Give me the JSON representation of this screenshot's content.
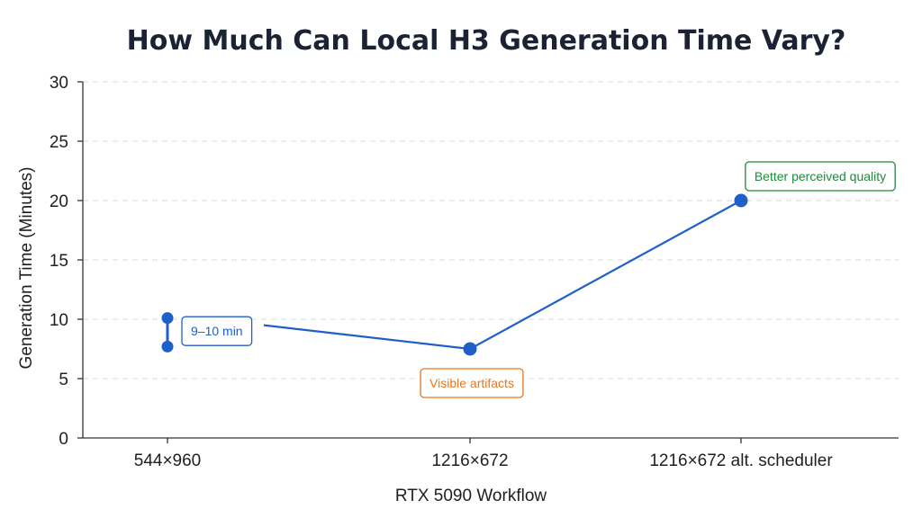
{
  "chart_data": {
    "type": "line",
    "title": "How Much Can Local H3 Generation Time Vary?",
    "xlabel": "RTX 5090 Workflow",
    "ylabel": "Generation Time (Minutes)",
    "categories": [
      "544×960",
      "1216×672",
      "1216×672 alt. scheduler"
    ],
    "ylim": [
      0,
      30
    ],
    "yticks": [
      0,
      5,
      10,
      15,
      20,
      25,
      30
    ],
    "grid": true,
    "series": [
      {
        "color": "#1f5fc8",
        "range_points": [
          {
            "category": "544×960",
            "low": 7.7,
            "high": 10.1
          }
        ],
        "line_points": [
          {
            "category": "544×960",
            "y": 9.5
          },
          {
            "category": "1216×672",
            "y": 7.5
          },
          {
            "category": "1216×672 alt. scheduler",
            "y": 20
          }
        ],
        "markers": [
          {
            "category": "1216×672",
            "y": 7.5
          },
          {
            "category": "1216×672 alt. scheduler",
            "y": 20
          }
        ]
      }
    ],
    "annotations": [
      {
        "text": "9–10 min",
        "category": "544×960",
        "y": 9.0,
        "color": "#1f5fc8"
      },
      {
        "text": "Visible artifacts",
        "category": "1216×672",
        "y": 7.5,
        "color": "#e8761c"
      },
      {
        "text": "Better perceived quality",
        "category": "1216×672 alt. scheduler",
        "y": 20,
        "color": "#1e8a3a"
      }
    ]
  }
}
